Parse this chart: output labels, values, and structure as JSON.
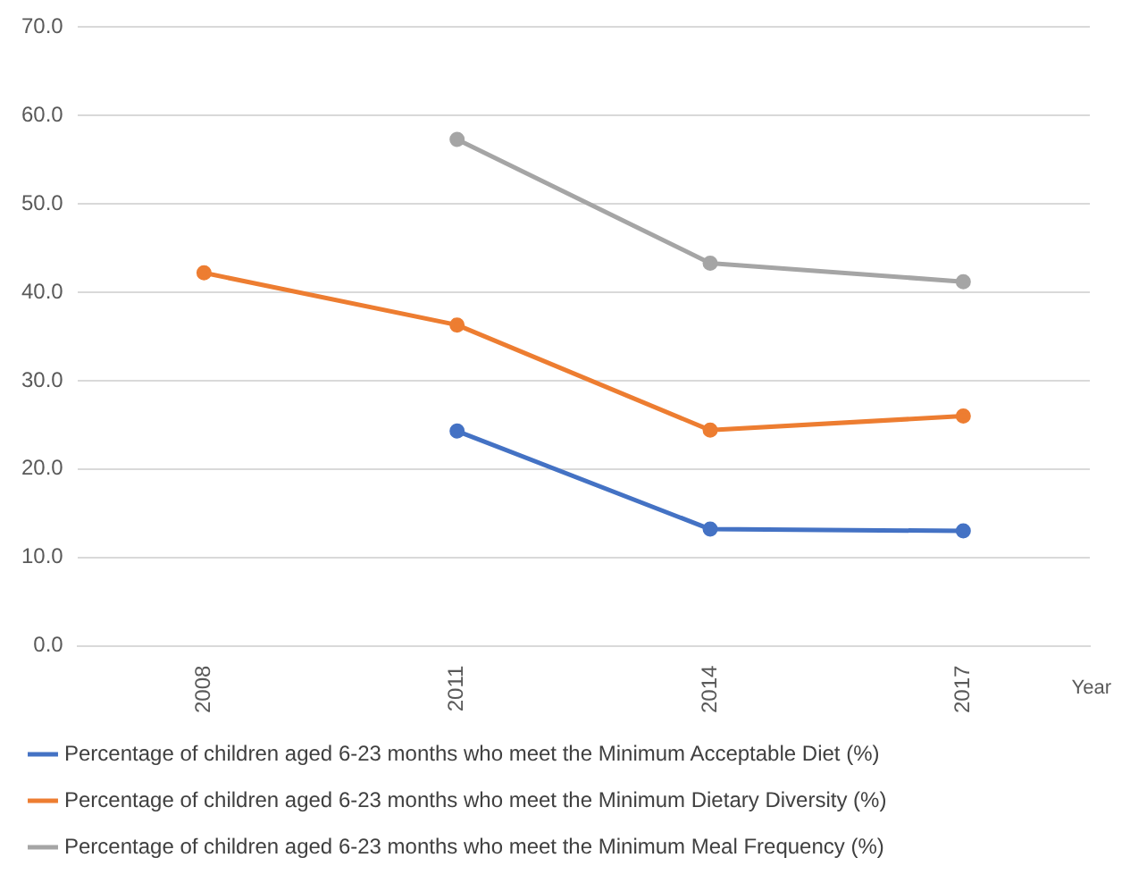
{
  "chart_data": {
    "type": "line",
    "xlabel": "Year",
    "categories": [
      "2008",
      "2011",
      "2014",
      "2017"
    ],
    "series": [
      {
        "name": "Percentage of children aged 6-23 months who meet the Minimum Acceptable Diet (%)",
        "color": "#4472c4",
        "values": [
          null,
          24.3,
          13.2,
          13.0
        ]
      },
      {
        "name": "Percentage of children aged 6-23 months who meet the Minimum Dietary Diversity (%)",
        "color": "#ed7d31",
        "values": [
          42.2,
          36.3,
          24.4,
          26.0
        ]
      },
      {
        "name": "Percentage of children aged 6-23 months who meet the Minimum Meal Frequency (%)",
        "color": "#a5a5a5",
        "values": [
          null,
          57.3,
          43.3,
          41.2
        ]
      }
    ],
    "ylim": [
      0,
      70
    ],
    "yticks": [
      {
        "value": 0,
        "label": "0.0"
      },
      {
        "value": 10,
        "label": "10.0"
      },
      {
        "value": 20,
        "label": "20.0"
      },
      {
        "value": 30,
        "label": "30.0"
      },
      {
        "value": 40,
        "label": "40.0"
      },
      {
        "value": 50,
        "label": "50.0"
      },
      {
        "value": 60,
        "label": "60.0"
      },
      {
        "value": 70,
        "label": "70.0"
      }
    ],
    "grid": "y",
    "legend": "bottom",
    "marker": "circle",
    "line_style": "solid"
  }
}
